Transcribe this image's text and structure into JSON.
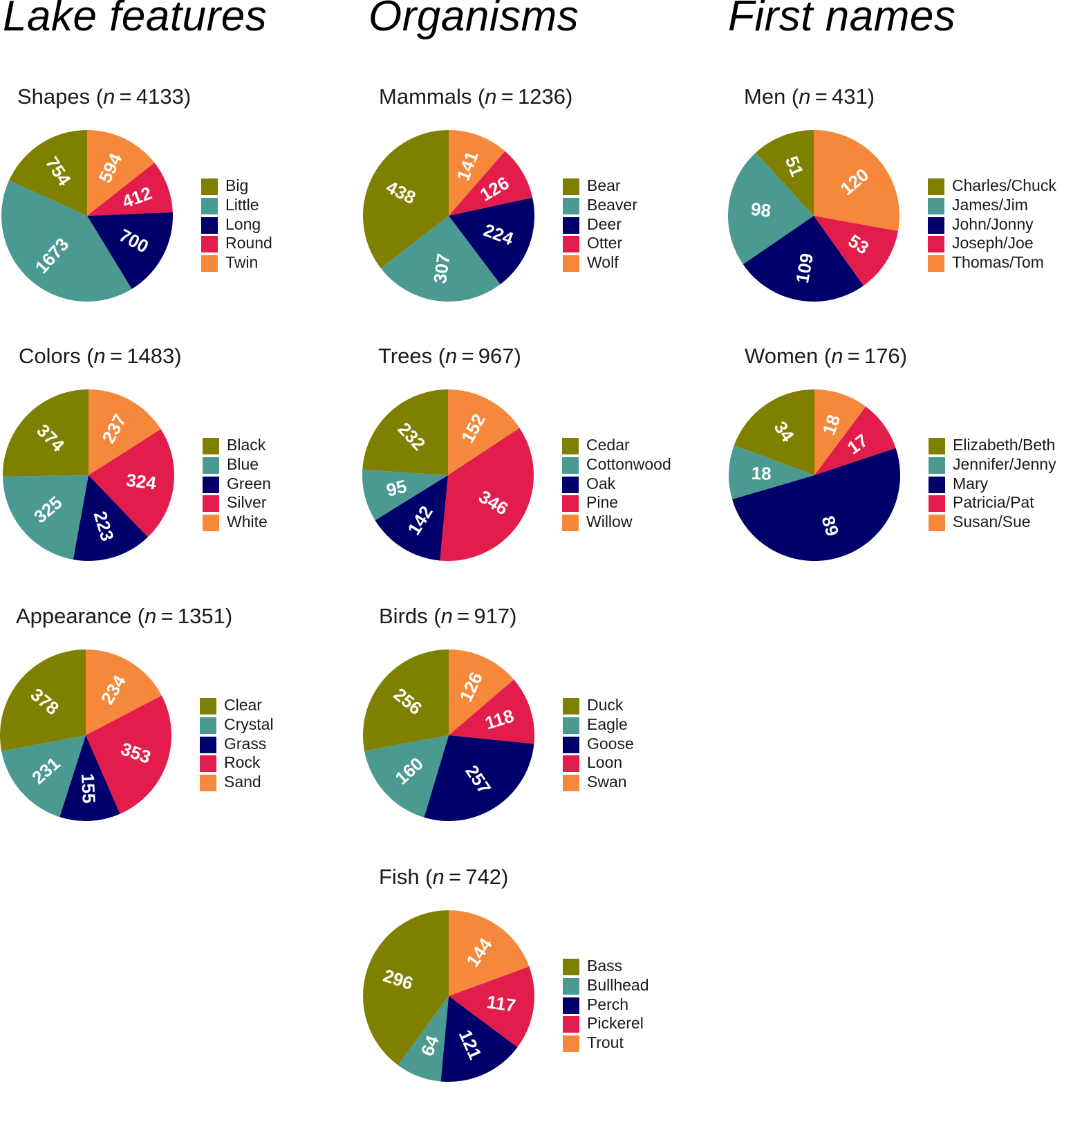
{
  "colors": {
    "olive": "#808000",
    "teal": "#4a9a92",
    "navy": "#00006b",
    "crimson": "#e31d4b",
    "orange": "#f5883a"
  },
  "columns": {
    "lake": "Lake features",
    "organisms": "Organisms",
    "names": "First names"
  },
  "chart_data": [
    {
      "type": "pie",
      "group": "Lake features",
      "title": "Shapes",
      "n": "4133",
      "categories": [
        "Big",
        "Little",
        "Long",
        "Round",
        "Twin"
      ],
      "values": [
        754,
        1673,
        700,
        412,
        594
      ]
    },
    {
      "type": "pie",
      "group": "Lake features",
      "title": "Colors",
      "n": "1483",
      "categories": [
        "Black",
        "Blue",
        "Green",
        "Silver",
        "White"
      ],
      "values": [
        374,
        325,
        223,
        324,
        237
      ]
    },
    {
      "type": "pie",
      "group": "Lake features",
      "title": "Appearance",
      "n": "1351",
      "categories": [
        "Clear",
        "Crystal",
        "Grass",
        "Rock",
        "Sand"
      ],
      "values": [
        378,
        231,
        155,
        353,
        234
      ]
    },
    {
      "type": "pie",
      "group": "Organisms",
      "title": "Mammals",
      "n": "1236",
      "categories": [
        "Bear",
        "Beaver",
        "Deer",
        "Otter",
        "Wolf"
      ],
      "values": [
        438,
        307,
        224,
        126,
        141
      ]
    },
    {
      "type": "pie",
      "group": "Organisms",
      "title": "Trees",
      "n": "967",
      "categories": [
        "Cedar",
        "Cottonwood",
        "Oak",
        "Pine",
        "Willow"
      ],
      "values": [
        232,
        95,
        142,
        346,
        152
      ]
    },
    {
      "type": "pie",
      "group": "Organisms",
      "title": "Birds",
      "n": "917",
      "categories": [
        "Duck",
        "Eagle",
        "Goose",
        "Loon",
        "Swan"
      ],
      "values": [
        256,
        160,
        257,
        118,
        126
      ]
    },
    {
      "type": "pie",
      "group": "Organisms",
      "title": "Fish",
      "n": "742",
      "categories": [
        "Bass",
        "Bullhead",
        "Perch",
        "Pickerel",
        "Trout"
      ],
      "values": [
        296,
        64,
        121,
        117,
        144
      ]
    },
    {
      "type": "pie",
      "group": "First names",
      "title": "Men",
      "n": "431",
      "categories": [
        "Charles/Chuck",
        "James/Jim",
        "John/Jonny",
        "Joseph/Joe",
        "Thomas/Tom"
      ],
      "values": [
        51,
        98,
        109,
        53,
        120
      ]
    },
    {
      "type": "pie",
      "group": "First names",
      "title": "Women",
      "n": "176",
      "categories": [
        "Elizabeth/Beth",
        "Jennifer/Jenny",
        "Mary",
        "Patricia/Pat",
        "Susan/Sue"
      ],
      "values": [
        34,
        18,
        89,
        17,
        18
      ]
    }
  ]
}
